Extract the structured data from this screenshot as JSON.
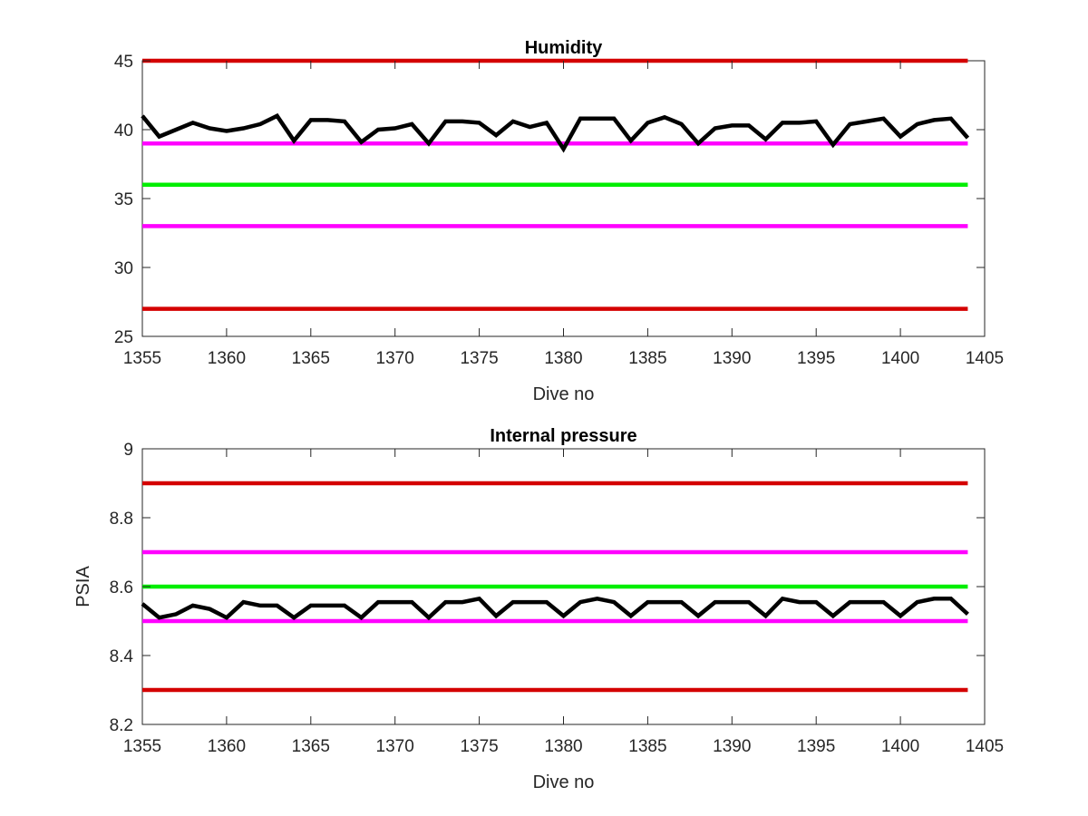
{
  "chart_data": [
    {
      "type": "line",
      "title": "Humidity",
      "xlabel": "Dive no",
      "ylabel": "",
      "xlim": [
        1355,
        1405
      ],
      "ylim": [
        25,
        45
      ],
      "xticks": [
        "1355",
        "1360",
        "1365",
        "1370",
        "1375",
        "1380",
        "1385",
        "1390",
        "1395",
        "1400",
        "1405"
      ],
      "yticks": [
        "25",
        "30",
        "35",
        "40",
        "45"
      ],
      "grid": false,
      "reference_lines": [
        {
          "y": 45,
          "color": "#d40000"
        },
        {
          "y": 39,
          "color": "#ff00ff"
        },
        {
          "y": 36,
          "color": "#00ee00"
        },
        {
          "y": 33,
          "color": "#ff00ff"
        },
        {
          "y": 27,
          "color": "#d40000"
        }
      ],
      "series": [
        {
          "color": "#000000",
          "x": [
            1355,
            1356,
            1357,
            1358,
            1359,
            1360,
            1361,
            1362,
            1363,
            1364,
            1365,
            1366,
            1367,
            1368,
            1369,
            1370,
            1371,
            1372,
            1373,
            1374,
            1375,
            1376,
            1377,
            1378,
            1379,
            1380,
            1381,
            1382,
            1383,
            1384,
            1385,
            1386,
            1387,
            1388,
            1389,
            1390,
            1391,
            1392,
            1393,
            1394,
            1395,
            1396,
            1397,
            1398,
            1399,
            1400,
            1401,
            1402,
            1403,
            1404
          ],
          "values": [
            41.0,
            39.5,
            40.0,
            40.5,
            40.1,
            39.9,
            40.1,
            40.4,
            41.0,
            39.2,
            40.7,
            40.7,
            40.6,
            39.1,
            40.0,
            40.1,
            40.4,
            39.0,
            40.6,
            40.6,
            40.5,
            39.6,
            40.6,
            40.2,
            40.5,
            38.6,
            40.8,
            40.8,
            40.8,
            39.2,
            40.5,
            40.9,
            40.4,
            39.0,
            40.1,
            40.3,
            40.3,
            39.3,
            40.5,
            40.5,
            40.6,
            38.9,
            40.4,
            40.6,
            40.8,
            39.5,
            40.4,
            40.7,
            40.8,
            39.4
          ]
        }
      ]
    },
    {
      "type": "line",
      "title": "Internal pressure",
      "xlabel": "Dive no",
      "ylabel": "PSIA",
      "xlim": [
        1355,
        1405
      ],
      "ylim": [
        8.2,
        9.0
      ],
      "xticks": [
        "1355",
        "1360",
        "1365",
        "1370",
        "1375",
        "1380",
        "1385",
        "1390",
        "1395",
        "1400",
        "1405"
      ],
      "yticks": [
        "8.2",
        "8.4",
        "8.6",
        "8.8",
        "9"
      ],
      "grid": false,
      "reference_lines": [
        {
          "y": 8.9,
          "color": "#d40000"
        },
        {
          "y": 8.7,
          "color": "#ff00ff"
        },
        {
          "y": 8.6,
          "color": "#00ee00"
        },
        {
          "y": 8.5,
          "color": "#ff00ff"
        },
        {
          "y": 8.3,
          "color": "#d40000"
        }
      ],
      "series": [
        {
          "color": "#000000",
          "x": [
            1355,
            1356,
            1357,
            1358,
            1359,
            1360,
            1361,
            1362,
            1363,
            1364,
            1365,
            1366,
            1367,
            1368,
            1369,
            1370,
            1371,
            1372,
            1373,
            1374,
            1375,
            1376,
            1377,
            1378,
            1379,
            1380,
            1381,
            1382,
            1383,
            1384,
            1385,
            1386,
            1387,
            1388,
            1389,
            1390,
            1391,
            1392,
            1393,
            1394,
            1395,
            1396,
            1397,
            1398,
            1399,
            1400,
            1401,
            1402,
            1403,
            1404
          ],
          "values": [
            8.55,
            8.51,
            8.52,
            8.545,
            8.535,
            8.51,
            8.555,
            8.545,
            8.545,
            8.51,
            8.545,
            8.545,
            8.545,
            8.51,
            8.555,
            8.555,
            8.555,
            8.51,
            8.555,
            8.555,
            8.565,
            8.515,
            8.555,
            8.555,
            8.555,
            8.515,
            8.555,
            8.565,
            8.555,
            8.515,
            8.555,
            8.555,
            8.555,
            8.515,
            8.555,
            8.555,
            8.555,
            8.515,
            8.565,
            8.555,
            8.555,
            8.515,
            8.555,
            8.555,
            8.555,
            8.515,
            8.555,
            8.565,
            8.565,
            8.52
          ]
        }
      ]
    }
  ]
}
